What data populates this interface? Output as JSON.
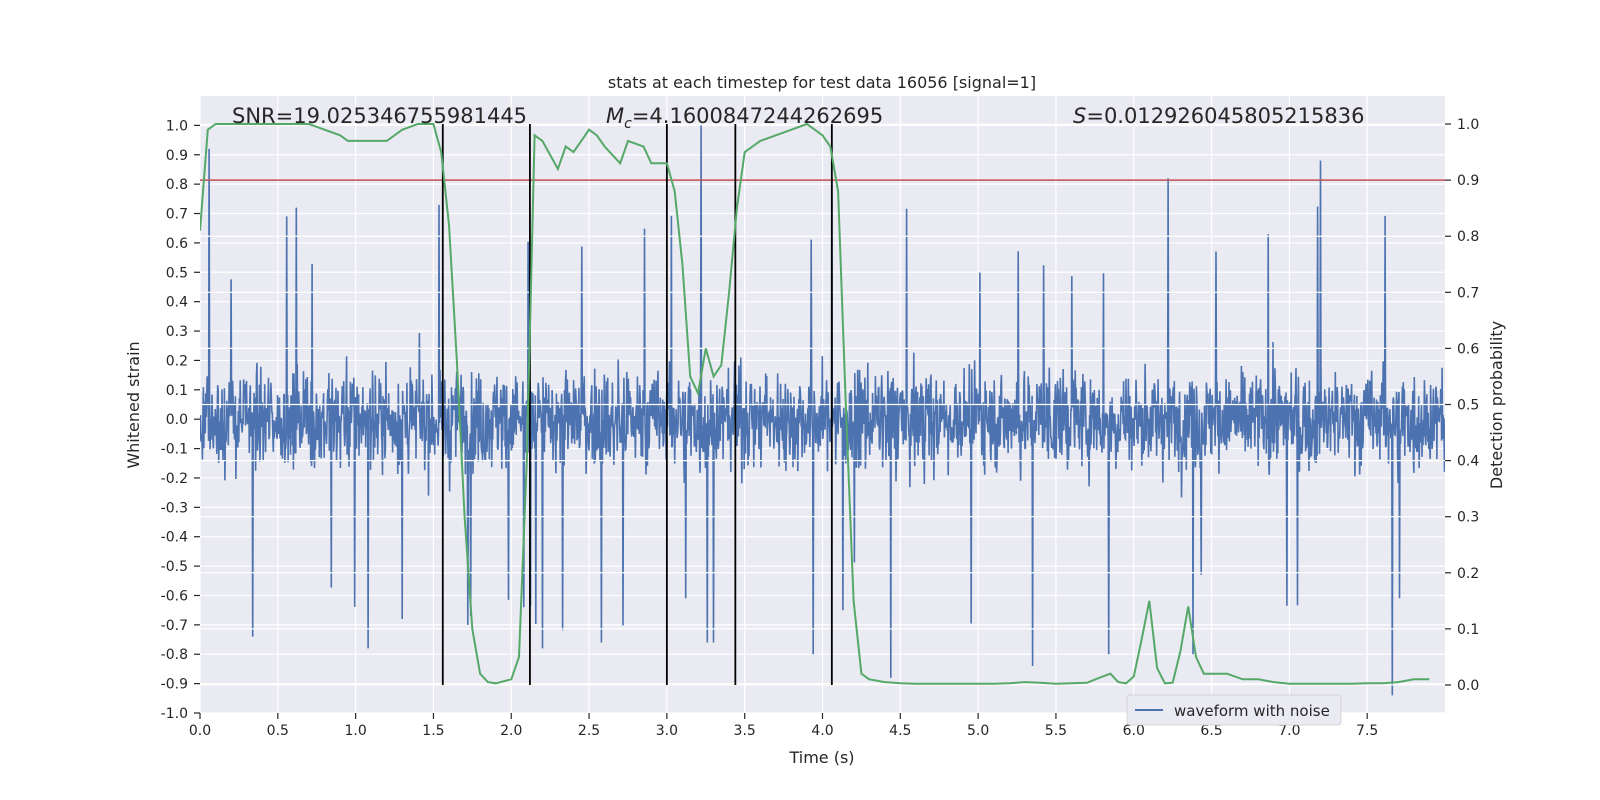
{
  "chart_data": {
    "type": "line",
    "title": "stats at each timestep for test data 16056 [signal=1]",
    "xlabel": "Time (s)",
    "ylabel": "Whitened strain",
    "y2label": "Detection probability",
    "xlim": [
      0,
      8
    ],
    "ylim": [
      -1.0,
      1.1
    ],
    "y2lim": [
      -0.05,
      1.05
    ],
    "xticks": [
      "0.0",
      "0.5",
      "1.0",
      "1.5",
      "2.0",
      "2.5",
      "3.0",
      "3.5",
      "4.0",
      "4.5",
      "5.0",
      "5.5",
      "6.0",
      "6.5",
      "7.0",
      "7.5"
    ],
    "yticks": [
      "-1.0",
      "-0.9",
      "-0.8",
      "-0.7",
      "-0.6",
      "-0.5",
      "-0.4",
      "-0.3",
      "-0.2",
      "-0.1",
      "0.0",
      "0.1",
      "0.2",
      "0.3",
      "0.4",
      "0.5",
      "0.6",
      "0.7",
      "0.8",
      "0.9",
      "1.0"
    ],
    "y2ticks": [
      "0.0",
      "0.1",
      "0.2",
      "0.3",
      "0.4",
      "0.5",
      "0.6",
      "0.7",
      "0.8",
      "0.9",
      "1.0"
    ],
    "grid": true,
    "legend": {
      "position": "lower-right",
      "entries": [
        "waveform with noise"
      ]
    },
    "annotations": {
      "snr": "SNR=19.025346755981445",
      "mc_symbol": "M",
      "mc_subscript": "c",
      "mc_value": "=4.1600847244262695",
      "s_symbol": "S",
      "s_value": "=0.012926045805215836"
    },
    "threshold": {
      "axis": "right",
      "value": 0.9,
      "color": "#c44e52"
    },
    "vertical_lines": [
      1.56,
      2.12,
      3.0,
      3.44,
      4.06
    ],
    "series": [
      {
        "name": "waveform with noise",
        "axis": "left",
        "color": "#4c72b0",
        "description": "dense noisy strain signal, core amplitude about +/-0.3 with spikes up to about +/-0.9",
        "core_amplitude": 0.3,
        "peaks": [
          {
            "x": 0.06,
            "y": 0.92
          },
          {
            "x": 0.34,
            "y": -0.74
          },
          {
            "x": 0.62,
            "y": 0.72
          },
          {
            "x": 1.08,
            "y": -0.78
          },
          {
            "x": 1.3,
            "y": -0.68
          },
          {
            "x": 1.72,
            "y": -0.7
          },
          {
            "x": 2.08,
            "y": -0.64
          },
          {
            "x": 2.2,
            "y": -0.78
          },
          {
            "x": 2.58,
            "y": -0.76
          },
          {
            "x": 3.22,
            "y": 1.0
          },
          {
            "x": 3.26,
            "y": -0.76
          },
          {
            "x": 3.3,
            "y": -0.76
          },
          {
            "x": 3.94,
            "y": -0.8
          },
          {
            "x": 4.06,
            "y": 0.82
          },
          {
            "x": 4.44,
            "y": -0.88
          },
          {
            "x": 5.35,
            "y": -0.84
          },
          {
            "x": 5.84,
            "y": -0.8
          },
          {
            "x": 6.22,
            "y": 0.82
          },
          {
            "x": 6.38,
            "y": -0.8
          },
          {
            "x": 7.2,
            "y": 0.88
          },
          {
            "x": 7.66,
            "y": -0.94
          }
        ]
      },
      {
        "name": "Detection probability",
        "axis": "right",
        "color": "#55a868",
        "x": [
          0.0,
          0.05,
          0.1,
          0.2,
          0.3,
          0.4,
          0.5,
          0.6,
          0.7,
          0.8,
          0.9,
          0.95,
          1.0,
          1.1,
          1.2,
          1.3,
          1.4,
          1.5,
          1.55,
          1.6,
          1.65,
          1.7,
          1.75,
          1.8,
          1.85,
          1.9,
          2.0,
          2.05,
          2.1,
          2.15,
          2.2,
          2.3,
          2.35,
          2.4,
          2.5,
          2.55,
          2.6,
          2.7,
          2.75,
          2.85,
          2.9,
          3.0,
          3.05,
          3.1,
          3.15,
          3.2,
          3.25,
          3.3,
          3.35,
          3.4,
          3.45,
          3.5,
          3.55,
          3.6,
          3.7,
          3.8,
          3.9,
          4.0,
          4.05,
          4.1,
          4.15,
          4.2,
          4.25,
          4.3,
          4.4,
          4.5,
          4.6,
          4.7,
          4.8,
          4.9,
          5.0,
          5.1,
          5.2,
          5.3,
          5.4,
          5.5,
          5.6,
          5.7,
          5.8,
          5.85,
          5.9,
          5.95,
          6.0,
          6.05,
          6.1,
          6.15,
          6.2,
          6.25,
          6.3,
          6.35,
          6.4,
          6.45,
          6.5,
          6.55,
          6.6,
          6.7,
          6.8,
          6.9,
          7.0,
          7.1,
          7.2,
          7.3,
          7.4,
          7.5,
          7.6,
          7.7,
          7.8,
          7.9
        ],
        "values": [
          0.81,
          0.99,
          1.0,
          1.0,
          1.0,
          1.0,
          1.0,
          1.0,
          1.0,
          0.99,
          0.98,
          0.97,
          0.97,
          0.97,
          0.97,
          0.99,
          1.0,
          1.0,
          0.95,
          0.82,
          0.58,
          0.3,
          0.1,
          0.02,
          0.005,
          0.003,
          0.01,
          0.05,
          0.4,
          0.98,
          0.97,
          0.92,
          0.96,
          0.95,
          0.99,
          0.98,
          0.96,
          0.93,
          0.97,
          0.96,
          0.93,
          0.93,
          0.88,
          0.75,
          0.55,
          0.52,
          0.6,
          0.55,
          0.57,
          0.7,
          0.85,
          0.95,
          0.96,
          0.97,
          0.98,
          0.99,
          1.0,
          0.98,
          0.96,
          0.88,
          0.5,
          0.15,
          0.02,
          0.01,
          0.005,
          0.003,
          0.002,
          0.002,
          0.002,
          0.002,
          0.002,
          0.002,
          0.003,
          0.005,
          0.004,
          0.002,
          0.003,
          0.004,
          0.015,
          0.02,
          0.005,
          0.003,
          0.015,
          0.08,
          0.15,
          0.03,
          0.003,
          0.004,
          0.06,
          0.14,
          0.05,
          0.02,
          0.02,
          0.02,
          0.02,
          0.01,
          0.01,
          0.005,
          0.002,
          0.002,
          0.002,
          0.002,
          0.002,
          0.003,
          0.003,
          0.005,
          0.01,
          0.01
        ]
      }
    ]
  }
}
